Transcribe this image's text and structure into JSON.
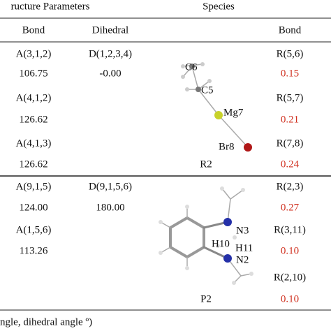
{
  "header": {
    "group_left": "ructure Parameters",
    "group_right": "Species"
  },
  "columns": [
    "Bond",
    "Dihedral",
    "Bond"
  ],
  "rows": [
    [
      "A(3,1,2)",
      "D(1,2,3,4)",
      "R(5,6)"
    ],
    [
      "106.75",
      "-0.00",
      "0.15"
    ],
    [
      "A(4,1,2)",
      null,
      "R(5,7)"
    ],
    [
      "126.62",
      null,
      "0.21"
    ],
    [
      "A(4,1,3)",
      null,
      "R(7,8)"
    ],
    [
      "126.62",
      null,
      "0.24"
    ],
    [
      "A(9,1,5)",
      "D(9,1,5,6)",
      "R(2,3)"
    ],
    [
      "124.00",
      "180.00",
      "0.27"
    ],
    [
      "A(1,5,6)",
      null,
      "R(3,11)"
    ],
    [
      "113.26",
      null,
      "0.10"
    ],
    [
      null,
      null,
      "R(2,10)"
    ],
    [
      null,
      null,
      "0.10"
    ]
  ],
  "species": [
    {
      "name": "R2",
      "atoms": [
        "C6",
        "C5",
        "Mg7",
        "Br8"
      ]
    },
    {
      "name": "P2",
      "atoms": [
        "N3",
        "H11",
        "H10",
        "N2"
      ]
    }
  ],
  "footnote": "ngle, dihedral angle º)"
}
